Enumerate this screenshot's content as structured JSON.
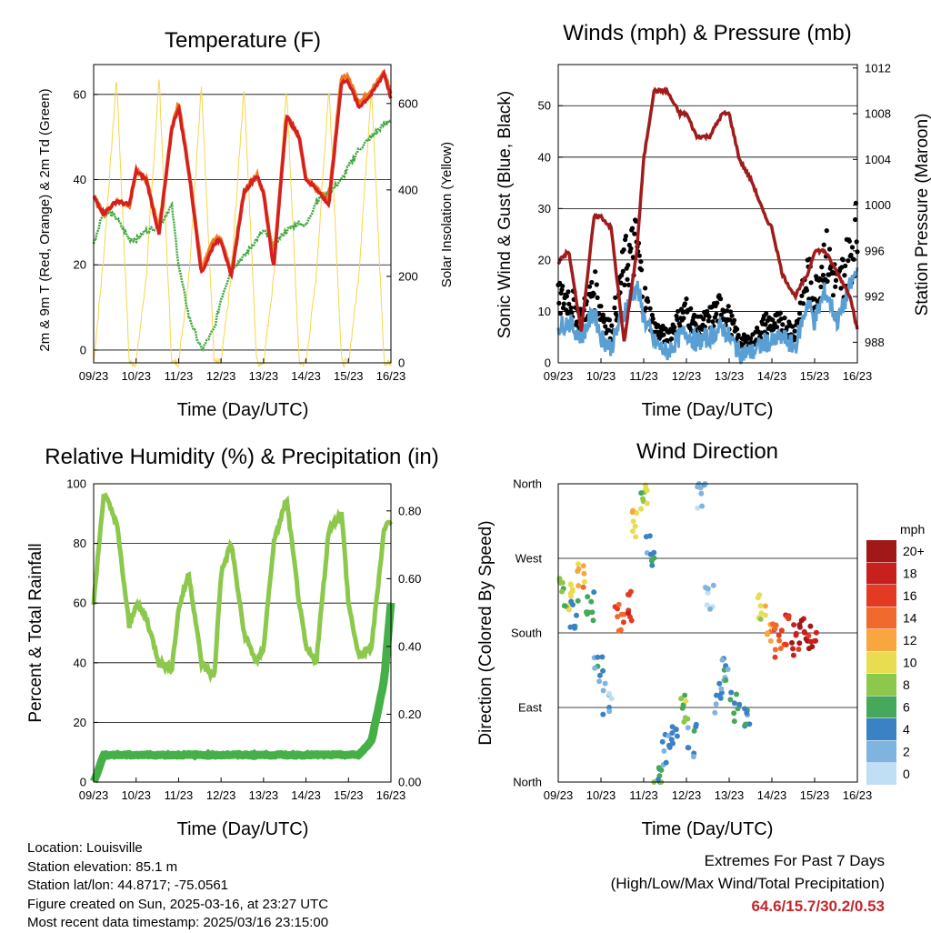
{
  "panels": {
    "temperature": {
      "title": "Temperature (F)",
      "xlabel": "Time (Day/UTC)",
      "ylabel_left": "2m & 9m T (Red, Orange) & 2m Td (Green)",
      "ylabel_right": "Solar Insolation (Yellow)"
    },
    "winds": {
      "title": "Winds (mph) & Pressure (mb)",
      "xlabel": "Time (Day/UTC)",
      "ylabel_left": "Sonic Wind & Gust (Blue, Black)",
      "ylabel_right": "Station Pressure (Maroon)"
    },
    "humidity": {
      "title": "Relative Humidity (%) & Precipitation (in)",
      "xlabel": "Time (Day/UTC)",
      "ylabel_left": "Percent & Total Rainfall"
    },
    "direction": {
      "title": "Wind Direction",
      "xlabel": "Time (Day/UTC)",
      "ylabel_left": "Direction (Colored By Speed)",
      "legend_title": "mph",
      "legend_labels": [
        "20+",
        "18",
        "16",
        "14",
        "12",
        "10",
        "8",
        "6",
        "4",
        "2",
        "0"
      ],
      "legend_colors": [
        "#a01818",
        "#c8201e",
        "#e33b23",
        "#f06a2e",
        "#f8a640",
        "#e8dc50",
        "#8cc84c",
        "#46a85a",
        "#3b82c4",
        "#7fb3e0",
        "#c0dff5"
      ]
    }
  },
  "colors": {
    "temp_2m": "#d42020",
    "temp_9m": "#f07a20",
    "dewpoint": "#40a840",
    "solar": "#f5d74a",
    "wind": "#5a9fd4",
    "gust": "#000000",
    "pressure": "#a01c1c",
    "rh": "#8cc84c",
    "precip": "#46b048"
  },
  "info": {
    "location": "Location: Louisville",
    "elevation": "Station elevation: 85.1 m",
    "latlon": "Station lat/lon: 44.8717; -75.0561",
    "created": "Figure created on Sun, 2025-03-16, at 23:27 UTC",
    "latest": "Most recent data timestamp: 2025/03/16 23:15:00"
  },
  "extremes": {
    "title": "Extremes For Past 7 Days",
    "subtitle": "(High/Low/Max Wind/Total Precipitation)",
    "values": "64.6/15.7/30.2/0.53"
  },
  "chart_data": [
    {
      "type": "line",
      "title": "Temperature (F)",
      "xlabel": "Time (Day/UTC)",
      "ylabel": "2m & 9m T (Red, Orange) & 2m Td (Green)",
      "ylabel_right": "Solar Insolation (Yellow)",
      "x_ticks": [
        "09/23",
        "10/23",
        "11/23",
        "12/23",
        "13/23",
        "14/23",
        "15/23",
        "16/23"
      ],
      "xlim": [
        9.96,
        16.96
      ],
      "ylim": [
        -3,
        67
      ],
      "y_ticks": [
        0,
        20,
        40,
        60
      ],
      "ylim_right": [
        0,
        690
      ],
      "y_ticks_right": [
        0,
        200,
        400,
        600
      ],
      "grid": true,
      "x": [
        9.96,
        10.2,
        10.5,
        10.8,
        10.96,
        11.2,
        11.5,
        11.8,
        11.96,
        12.2,
        12.5,
        12.8,
        12.96,
        13.2,
        13.5,
        13.8,
        13.96,
        14.2,
        14.5,
        14.8,
        14.96,
        15.2,
        15.5,
        15.8,
        15.96,
        16.2,
        16.5,
        16.8,
        16.96
      ],
      "series": [
        {
          "name": "2m T",
          "values": [
            36,
            32,
            35,
            34,
            42,
            40,
            27,
            52,
            57,
            42,
            18,
            25,
            26,
            17,
            37,
            41,
            37,
            19,
            55,
            50,
            40,
            38,
            34,
            63,
            63,
            57,
            60,
            65,
            59
          ]
        },
        {
          "name": "9m T",
          "values": [
            36,
            32,
            35,
            34,
            42,
            40,
            28,
            52,
            58,
            42,
            19,
            26,
            26,
            18,
            37,
            41,
            37,
            20,
            55,
            50,
            40,
            38,
            35,
            64,
            64,
            58,
            61,
            65,
            60
          ]
        },
        {
          "name": "2m Td",
          "values": [
            25,
            33,
            31,
            26,
            26,
            28,
            29,
            34,
            20,
            8,
            0,
            5,
            12,
            19,
            22,
            26,
            28,
            25,
            28,
            30,
            29,
            35,
            37,
            40,
            43,
            47,
            50,
            53,
            54
          ]
        },
        {
          "name": "Solar Insolation",
          "values": [
            0,
            250,
            660,
            0,
            0,
            200,
            660,
            0,
            0,
            200,
            640,
            0,
            0,
            200,
            640,
            0,
            0,
            200,
            640,
            0,
            0,
            200,
            640,
            0,
            0,
            200,
            640,
            0,
            0
          ]
        }
      ]
    },
    {
      "type": "line",
      "title": "Winds (mph) & Pressure (mb)",
      "xlabel": "Time (Day/UTC)",
      "ylabel": "Sonic Wind & Gust (Blue, Black)",
      "ylabel_right": "Station Pressure (Maroon)",
      "x_ticks": [
        "09/23",
        "10/23",
        "11/23",
        "12/23",
        "13/23",
        "14/23",
        "15/23",
        "16/23"
      ],
      "xlim": [
        9.96,
        16.96
      ],
      "ylim": [
        0,
        58
      ],
      "y_ticks": [
        0,
        10,
        20,
        30,
        40,
        50
      ],
      "ylim_right": [
        986.2,
        1012.3
      ],
      "y_ticks_right": [
        988,
        992,
        996,
        1000,
        1004,
        1008,
        1012
      ],
      "grid": true,
      "x": [
        9.96,
        10.2,
        10.5,
        10.8,
        10.96,
        11.2,
        11.5,
        11.8,
        11.96,
        12.2,
        12.5,
        12.8,
        12.96,
        13.2,
        13.5,
        13.8,
        13.96,
        14.2,
        14.5,
        14.8,
        14.96,
        15.2,
        15.5,
        15.8,
        15.96,
        16.2,
        16.5,
        16.8,
        16.96
      ],
      "series": [
        {
          "name": "Sonic Wind",
          "values": [
            7,
            8,
            5,
            10,
            5,
            3,
            10,
            15,
            9,
            4,
            2,
            5,
            6,
            4,
            5,
            7,
            5,
            2,
            2,
            4,
            4,
            5,
            3,
            12,
            8,
            14,
            8,
            15,
            18
          ]
        },
        {
          "name": "Gust",
          "values": [
            14,
            15,
            10,
            17,
            12,
            7,
            22,
            27,
            15,
            8,
            6,
            10,
            12,
            8,
            10,
            13,
            10,
            5,
            5,
            9,
            9,
            9,
            7,
            20,
            15,
            25,
            17,
            25,
            30
          ]
        },
        {
          "name": "Station Pressure",
          "values": [
            995,
            996,
            989,
            999,
            999,
            998,
            988,
            996,
            1004,
            1010,
            1010,
            1008,
            1008,
            1006,
            1006,
            1008,
            1008,
            1004,
            1002,
            999,
            998,
            994,
            992,
            994,
            996,
            996,
            994,
            992,
            989
          ]
        }
      ]
    },
    {
      "type": "line",
      "title": "Relative Humidity (%) & Precipitation (in)",
      "xlabel": "Time (Day/UTC)",
      "ylabel": "Percent & Total Rainfall",
      "x_ticks": [
        "09/23",
        "10/23",
        "11/23",
        "12/23",
        "13/23",
        "14/23",
        "15/23",
        "16/23"
      ],
      "xlim": [
        9.96,
        16.96
      ],
      "ylim": [
        0,
        100
      ],
      "y_ticks": [
        0,
        20,
        40,
        60,
        80,
        100
      ],
      "ylim_right": [
        0,
        0.88
      ],
      "y_ticks_right": [
        0.0,
        0.2,
        0.4,
        0.6,
        0.8
      ],
      "grid": true,
      "x": [
        9.96,
        10.2,
        10.5,
        10.8,
        10.96,
        11.2,
        11.5,
        11.8,
        11.96,
        12.2,
        12.5,
        12.8,
        12.96,
        13.2,
        13.5,
        13.8,
        13.96,
        14.2,
        14.5,
        14.8,
        14.96,
        15.2,
        15.5,
        15.8,
        15.96,
        16.2,
        16.5,
        16.8,
        16.96
      ],
      "series": [
        {
          "name": "Relative Humidity",
          "values": [
            60,
            97,
            87,
            52,
            60,
            55,
            40,
            38,
            58,
            70,
            40,
            35,
            70,
            80,
            50,
            40,
            45,
            80,
            95,
            60,
            45,
            40,
            85,
            90,
            60,
            42,
            45,
            85,
            88
          ]
        },
        {
          "name": "Total Precipitation",
          "values": [
            0,
            0.08,
            0.08,
            0.08,
            0.08,
            0.08,
            0.08,
            0.08,
            0.08,
            0.08,
            0.08,
            0.08,
            0.08,
            0.08,
            0.08,
            0.08,
            0.08,
            0.08,
            0.08,
            0.08,
            0.08,
            0.08,
            0.08,
            0.08,
            0.08,
            0.08,
            0.12,
            0.3,
            0.53
          ]
        }
      ]
    },
    {
      "type": "scatter",
      "title": "Wind Direction",
      "xlabel": "Time (Day/UTC)",
      "ylabel": "Direction (Colored By Speed)",
      "x_ticks": [
        "09/23",
        "10/23",
        "11/23",
        "12/23",
        "13/23",
        "14/23",
        "15/23",
        "16/23"
      ],
      "xlim": [
        9.96,
        16.96
      ],
      "y_ticks": [
        "North",
        "East",
        "South",
        "West",
        "North"
      ],
      "ylim": [
        0,
        360
      ],
      "grid": true,
      "legend": "right",
      "points": [
        [
          10.1,
          230,
          8
        ],
        [
          10.2,
          225,
          10
        ],
        [
          10.35,
          200,
          4
        ],
        [
          10.5,
          250,
          12
        ],
        [
          10.7,
          210,
          6
        ],
        [
          10.9,
          140,
          4
        ],
        [
          11.1,
          100,
          2
        ],
        [
          11.4,
          200,
          14
        ],
        [
          11.6,
          210,
          16
        ],
        [
          11.8,
          310,
          10
        ],
        [
          12.0,
          340,
          8
        ],
        [
          12.1,
          280,
          4
        ],
        [
          12.3,
          0,
          6
        ],
        [
          12.5,
          40,
          3
        ],
        [
          12.7,
          60,
          4
        ],
        [
          12.9,
          90,
          8
        ],
        [
          13.1,
          50,
          4
        ],
        [
          13.3,
          350,
          2
        ],
        [
          13.5,
          220,
          1
        ],
        [
          13.7,
          100,
          3
        ],
        [
          13.9,
          130,
          4
        ],
        [
          14.1,
          90,
          5
        ],
        [
          14.4,
          70,
          4
        ],
        [
          14.7,
          210,
          10
        ],
        [
          14.9,
          180,
          12
        ],
        [
          15.1,
          170,
          14
        ],
        [
          15.3,
          185,
          16
        ],
        [
          15.5,
          170,
          18
        ],
        [
          15.7,
          180,
          20
        ],
        [
          15.9,
          175,
          18
        ]
      ],
      "legend_title": "mph",
      "legend_labels": [
        "20+",
        "18",
        "16",
        "14",
        "12",
        "10",
        "8",
        "6",
        "4",
        "2",
        "0"
      ]
    }
  ]
}
